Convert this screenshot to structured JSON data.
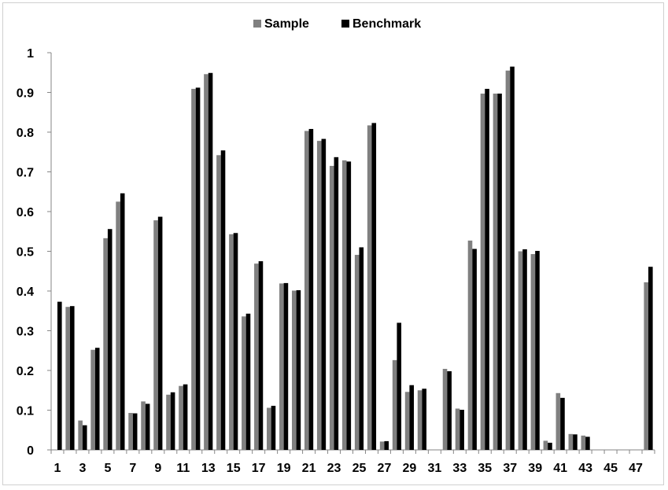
{
  "chart_data": {
    "type": "bar",
    "title": "",
    "xlabel": "",
    "ylabel": "",
    "ylim": [
      0,
      1
    ],
    "yticks": [
      "0",
      "0.1",
      "0.2",
      "0.3",
      "0.4",
      "0.5",
      "0.6",
      "0.7",
      "0.8",
      "0.9",
      "1"
    ],
    "categories": [
      "1",
      "2",
      "3",
      "4",
      "5",
      "6",
      "7",
      "8",
      "9",
      "10",
      "11",
      "12",
      "13",
      "14",
      "15",
      "16",
      "17",
      "18",
      "19",
      "20",
      "21",
      "22",
      "23",
      "24",
      "25",
      "26",
      "27",
      "28",
      "29",
      "30",
      "31",
      "32",
      "33",
      "34",
      "35",
      "36",
      "37",
      "38",
      "39",
      "40",
      "41",
      "42",
      "43",
      "44",
      "45",
      "46",
      "47",
      "48"
    ],
    "xtick_labels": [
      "1",
      "3",
      "5",
      "7",
      "9",
      "11",
      "13",
      "15",
      "17",
      "19",
      "21",
      "23",
      "25",
      "27",
      "29",
      "31",
      "33",
      "35",
      "37",
      "39",
      "41",
      "43",
      "45",
      "47"
    ],
    "legend_position": "top",
    "grid": false,
    "series": [
      {
        "name": "Sample",
        "color": "#808080",
        "values": [
          0,
          0.36,
          0.074,
          0.252,
          0.533,
          0.625,
          0.093,
          0.122,
          0.578,
          0.139,
          0.161,
          0.909,
          0.946,
          0.742,
          0.543,
          0.336,
          0.469,
          0.106,
          0.419,
          0.401,
          0.803,
          0.778,
          0.715,
          0.729,
          0.491,
          0.817,
          0.021,
          0.226,
          0.146,
          0.15,
          0,
          0.204,
          0.104,
          0.527,
          0.897,
          0.897,
          0.955,
          0.5,
          0.493,
          0.023,
          0.143,
          0.04,
          0.036,
          0,
          0,
          0,
          0,
          0.422
        ]
      },
      {
        "name": "Benchmark",
        "color": "#000000",
        "values": [
          0.373,
          0.362,
          0.062,
          0.257,
          0.556,
          0.646,
          0.092,
          0.116,
          0.587,
          0.145,
          0.165,
          0.912,
          0.949,
          0.754,
          0.546,
          0.343,
          0.475,
          0.111,
          0.42,
          0.402,
          0.808,
          0.783,
          0.737,
          0.726,
          0.51,
          0.823,
          0.022,
          0.32,
          0.163,
          0.154,
          0,
          0.198,
          0.101,
          0.506,
          0.909,
          0.897,
          0.965,
          0.505,
          0.501,
          0.018,
          0.131,
          0.039,
          0.033,
          0,
          0,
          0,
          0,
          0.461
        ]
      }
    ]
  }
}
